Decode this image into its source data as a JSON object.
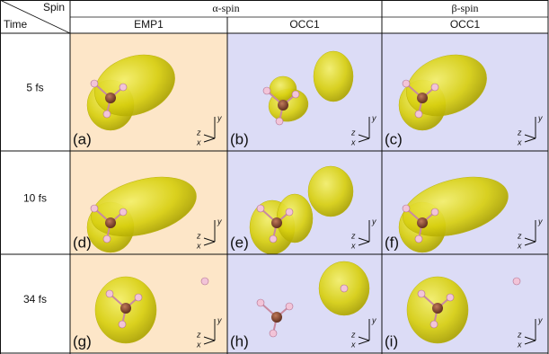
{
  "header": {
    "corner_top": "Spin",
    "corner_bottom": "Time",
    "groups": [
      "α-spin",
      "β-spin"
    ],
    "columns": [
      "EMP1",
      "OCC1",
      "OCC1"
    ]
  },
  "rows": [
    {
      "time": "5 fs",
      "panels": [
        "(a)",
        "(b)",
        "(c)"
      ]
    },
    {
      "time": "10 fs",
      "panels": [
        "(d)",
        "(e)",
        "(f)"
      ]
    },
    {
      "time": "34 fs",
      "panels": [
        "(g)",
        "(h)",
        "(i)"
      ]
    }
  ],
  "axes": {
    "x": "x",
    "y": "y",
    "z": "z"
  }
}
